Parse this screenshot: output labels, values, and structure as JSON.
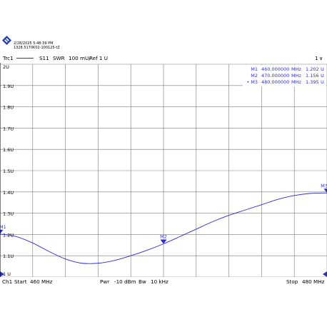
{
  "header": {
    "timestamp": "2/28/2025 5:48:39 PM",
    "device_id": "1328.5170K02-100125-tZ"
  },
  "trace_bar": {
    "trace": "Trc1",
    "parameter": "S11",
    "format": "SWR",
    "scale": "100 mU/",
    "reference": "Ref 1 U",
    "window": "1",
    "window_marker": "∨",
    "color": "#2b2bd8"
  },
  "footer": {
    "channel": "Ch1",
    "start_label": "Start",
    "start_value": "460 MHz",
    "power_label": "Pwr",
    "power_value": "-10 dBm",
    "bw_label": "Bw",
    "bw_value": "10 kHz",
    "stop_label": "Stop",
    "stop_value": "480 MHz"
  },
  "chart_data": {
    "type": "line",
    "title": "",
    "xlabel": "",
    "ylabel": "",
    "xlim": [
      460,
      480
    ],
    "ylim": [
      1.0,
      2.0
    ],
    "grid": true,
    "y_ticks": [
      "2U",
      "1.9U",
      "1.8U",
      "1.7U",
      "1.6U",
      "1.5U",
      "1.4U",
      "1.3U",
      "1.2U",
      "1.1U",
      "1 U"
    ],
    "series": [
      {
        "color": "#2b2bd8",
        "x": [
          460,
          461,
          462,
          463,
          464,
          465,
          466,
          467,
          468,
          469,
          470,
          471,
          472,
          473,
          474,
          475,
          476,
          477,
          478,
          479,
          480
        ],
        "y": [
          1.202,
          1.19,
          1.16,
          1.12,
          1.085,
          1.065,
          1.065,
          1.078,
          1.1,
          1.126,
          1.156,
          1.19,
          1.225,
          1.26,
          1.29,
          1.315,
          1.34,
          1.365,
          1.383,
          1.393,
          1.395
        ]
      }
    ],
    "markers": [
      {
        "label": "M1",
        "active": false,
        "freq": "460.000000",
        "unit": "MHz",
        "value": "1.202",
        "vunit": "U",
        "x": 460,
        "y": 1.202
      },
      {
        "label": "M2",
        "active": false,
        "freq": "470.000000",
        "unit": "MHz",
        "value": "1.156",
        "vunit": "U",
        "x": 470,
        "y": 1.156
      },
      {
        "label": "M3",
        "active": true,
        "freq": "480.000000",
        "unit": "MHz",
        "value": "1.395",
        "vunit": "U",
        "x": 480,
        "y": 1.395
      }
    ],
    "marker_table_placement": "top-right"
  }
}
